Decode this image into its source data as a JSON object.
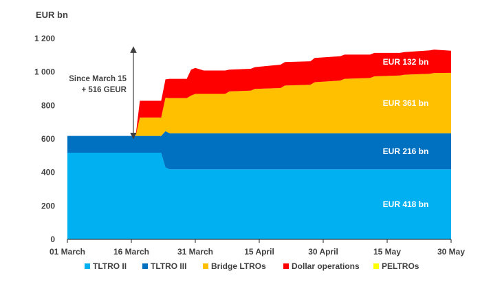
{
  "chart_data": {
    "type": "area",
    "stacked": true,
    "ylabel": "EUR bn",
    "ylim": [
      0,
      1200
    ],
    "yticks": [
      0,
      200,
      400,
      600,
      800,
      1000,
      1200
    ],
    "ytick_labels": [
      "0",
      "200",
      "400",
      "600",
      "800",
      "1 000",
      "1 200"
    ],
    "xlim": [
      "2020-03-01",
      "2020-05-30"
    ],
    "xticks": [
      "2020-03-01",
      "2020-03-16",
      "2020-03-31",
      "2020-04-15",
      "2020-04-30",
      "2020-05-15",
      "2020-05-30"
    ],
    "xtick_labels": [
      "01 March",
      "16 March",
      "31 March",
      "15 April",
      "30 April",
      "15 May",
      "30 May"
    ],
    "grid": false,
    "legend_position": "bottom",
    "dates": [
      "2020-03-01",
      "2020-03-17",
      "2020-03-18",
      "2020-03-22",
      "2020-03-23",
      "2020-03-24",
      "2020-03-25",
      "2020-03-26",
      "2020-03-29",
      "2020-03-30",
      "2020-03-31",
      "2020-04-02",
      "2020-04-05",
      "2020-04-07",
      "2020-04-08",
      "2020-04-13",
      "2020-04-14",
      "2020-04-20",
      "2020-04-21",
      "2020-04-27",
      "2020-04-28",
      "2020-05-04",
      "2020-05-05",
      "2020-05-11",
      "2020-05-12",
      "2020-05-18",
      "2020-05-19",
      "2020-05-25",
      "2020-05-26",
      "2020-05-30"
    ],
    "series": [
      {
        "name": "TLTRO II",
        "color": "#00b0f0",
        "values": [
          518,
          518,
          518,
          518,
          518,
          430,
          418,
          418,
          418,
          418,
          418,
          418,
          418,
          418,
          418,
          418,
          418,
          418,
          418,
          418,
          418,
          418,
          418,
          418,
          418,
          418,
          418,
          418,
          418,
          418
        ]
      },
      {
        "name": "TLTRO III",
        "color": "#0070c0",
        "values": [
          100,
          100,
          100,
          100,
          100,
          216,
          216,
          216,
          216,
          216,
          216,
          216,
          216,
          216,
          216,
          216,
          216,
          216,
          216,
          216,
          216,
          216,
          216,
          216,
          216,
          216,
          216,
          216,
          216,
          216
        ]
      },
      {
        "name": "Bridge LTROs",
        "color": "#ffc000",
        "values": [
          0,
          0,
          110,
          110,
          110,
          200,
          210,
          210,
          210,
          225,
          235,
          235,
          235,
          235,
          250,
          255,
          265,
          270,
          285,
          290,
          305,
          315,
          325,
          330,
          340,
          345,
          350,
          355,
          360,
          361
        ]
      },
      {
        "name": "Dollar operations",
        "color": "#ff0000",
        "values": [
          0,
          0,
          100,
          100,
          100,
          110,
          115,
          115,
          115,
          155,
          155,
          140,
          140,
          140,
          130,
          130,
          130,
          140,
          140,
          140,
          145,
          145,
          145,
          140,
          140,
          135,
          135,
          140,
          140,
          132
        ]
      },
      {
        "name": "PELTROs",
        "color": "#ffff00",
        "values": [
          0,
          0,
          0,
          0,
          0,
          0,
          0,
          0,
          0,
          0,
          0,
          0,
          0,
          0,
          0,
          0,
          0,
          0,
          0,
          0,
          0,
          0,
          0,
          0,
          0,
          0,
          0,
          0,
          0,
          0
        ]
      }
    ],
    "segment_labels": [
      {
        "series": "Dollar operations",
        "text": "EUR 132 bn"
      },
      {
        "series": "Bridge LTROs",
        "text": "EUR 361 bn"
      },
      {
        "series": "TLTRO III",
        "text": "EUR 216  bn"
      },
      {
        "series": "TLTRO II",
        "text": "EUR 418 bn"
      }
    ],
    "annotation": {
      "lines": [
        "Since March 15",
        "+ 516 GEUR"
      ],
      "from_value": 618,
      "to_value": 1134,
      "date": "2020-03-16"
    }
  }
}
